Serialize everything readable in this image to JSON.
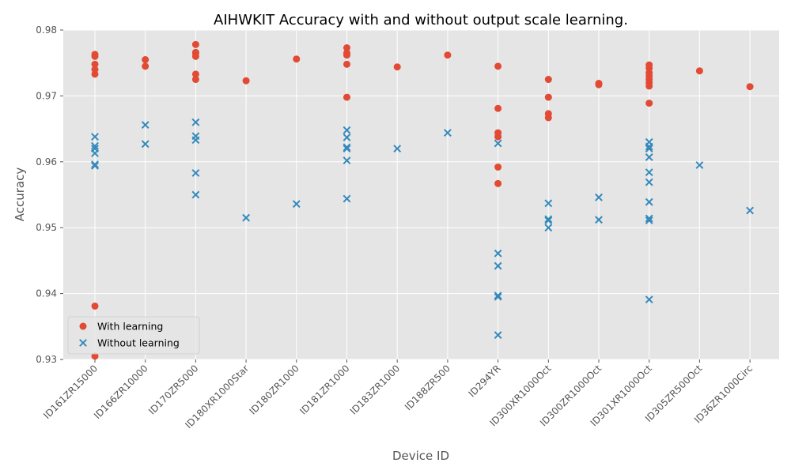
{
  "chart_data": {
    "type": "scatter",
    "title": "AIHWKIT Accuracy with and without output scale learning.",
    "xlabel": "Device ID",
    "ylabel": "Accuracy",
    "ylim": [
      0.93,
      0.98
    ],
    "yticks": [
      "0.93",
      "0.94",
      "0.95",
      "0.96",
      "0.97",
      "0.98"
    ],
    "grid": true,
    "legend_position": "lower-left",
    "categories": [
      "ID161ZR15000",
      "ID166ZR10000",
      "ID170ZR5000",
      "ID180XR1000Star",
      "ID180ZR1000",
      "ID181ZR1000",
      "ID183ZR1000",
      "ID188ZR500",
      "ID294YR",
      "ID300XR1000Oct",
      "ID300ZR1000Oct",
      "ID301XR1000Oct",
      "ID305ZR500Oct",
      "ID36ZR1000Circ"
    ],
    "series": [
      {
        "name": "With learning",
        "marker": "circle",
        "color": "#E24A33",
        "values": [
          [
            0.9763,
            0.976,
            0.9748,
            0.974,
            0.9733,
            0.9381,
            0.9305
          ],
          [
            0.9755,
            0.9745
          ],
          [
            0.9778,
            0.9766,
            0.9765,
            0.976,
            0.9733,
            0.9725
          ],
          [
            0.9723
          ],
          [
            0.9756
          ],
          [
            0.9773,
            0.9765,
            0.9762,
            0.9748,
            0.9698
          ],
          [
            0.9744
          ],
          [
            0.9762
          ],
          [
            0.9745,
            0.9681,
            0.9644,
            0.9638,
            0.9592,
            0.9567
          ],
          [
            0.9725,
            0.9698,
            0.9673,
            0.9667
          ],
          [
            0.9719,
            0.9717
          ],
          [
            0.9747,
            0.9742,
            0.9735,
            0.973,
            0.9725,
            0.972,
            0.9715,
            0.9689
          ],
          [
            0.9738
          ],
          [
            0.9714
          ]
        ]
      },
      {
        "name": "Without learning",
        "marker": "x",
        "color": "#348ABD",
        "values": [
          [
            0.9638,
            0.9624,
            0.962,
            0.9613,
            0.9596,
            0.9594
          ],
          [
            0.9656,
            0.9627
          ],
          [
            0.966,
            0.9639,
            0.9633,
            0.9583,
            0.955
          ],
          [
            0.9515
          ],
          [
            0.9536
          ],
          [
            0.9648,
            0.9637,
            0.9622,
            0.962,
            0.9602,
            0.9544
          ],
          [
            0.962
          ],
          [
            0.9644
          ],
          [
            0.9628,
            0.9461,
            0.9442,
            0.9397,
            0.9395,
            0.9337
          ],
          [
            0.9537,
            0.9513,
            0.9511,
            0.95
          ],
          [
            0.9546,
            0.9512
          ],
          [
            0.963,
            0.9623,
            0.962,
            0.9607,
            0.9584,
            0.9569,
            0.9539,
            0.9514,
            0.9511,
            0.9391
          ],
          [
            0.9595
          ],
          [
            0.9526
          ]
        ]
      }
    ]
  }
}
